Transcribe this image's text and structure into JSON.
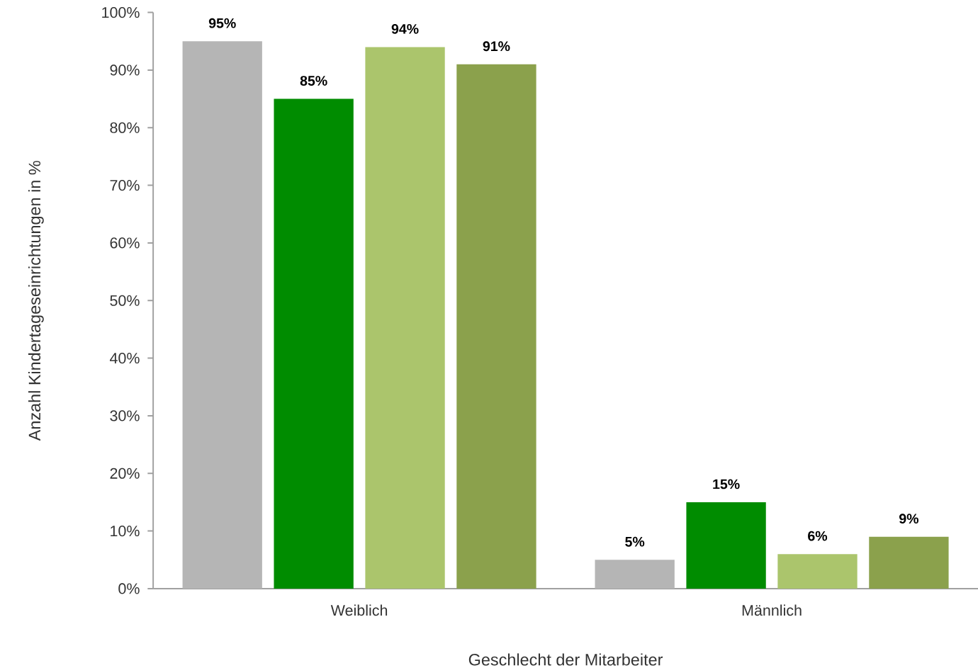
{
  "chart_data": {
    "type": "bar",
    "xlabel": "Geschlecht der Mitarbeiter",
    "ylabel": "Anzahl Kindertageseinrichtungen in %",
    "categories": [
      "Weiblich",
      "Männlich"
    ],
    "series": [
      {
        "color": "#b5b5b5",
        "values": [
          95,
          5
        ],
        "value_labels": [
          "95%",
          "5%"
        ]
      },
      {
        "color": "#008c00",
        "values": [
          85,
          15
        ],
        "value_labels": [
          "85%",
          "15%"
        ]
      },
      {
        "color": "#abc56c",
        "values": [
          94,
          6
        ],
        "value_labels": [
          "94%",
          "6%"
        ]
      },
      {
        "color": "#8ba14c",
        "values": [
          91,
          9
        ],
        "value_labels": [
          "91%",
          "9%"
        ]
      }
    ],
    "ylim": [
      0,
      100
    ],
    "yticks": [
      {
        "value": 0,
        "label": "0%"
      },
      {
        "value": 10,
        "label": "10%"
      },
      {
        "value": 20,
        "label": "20%"
      },
      {
        "value": 30,
        "label": "30%"
      },
      {
        "value": 40,
        "label": "40%"
      },
      {
        "value": 50,
        "label": "50%"
      },
      {
        "value": 60,
        "label": "60%"
      },
      {
        "value": 70,
        "label": "70%"
      },
      {
        "value": 80,
        "label": "80%"
      },
      {
        "value": 90,
        "label": "90%"
      },
      {
        "value": 100,
        "label": "100%"
      }
    ],
    "grid": false
  }
}
